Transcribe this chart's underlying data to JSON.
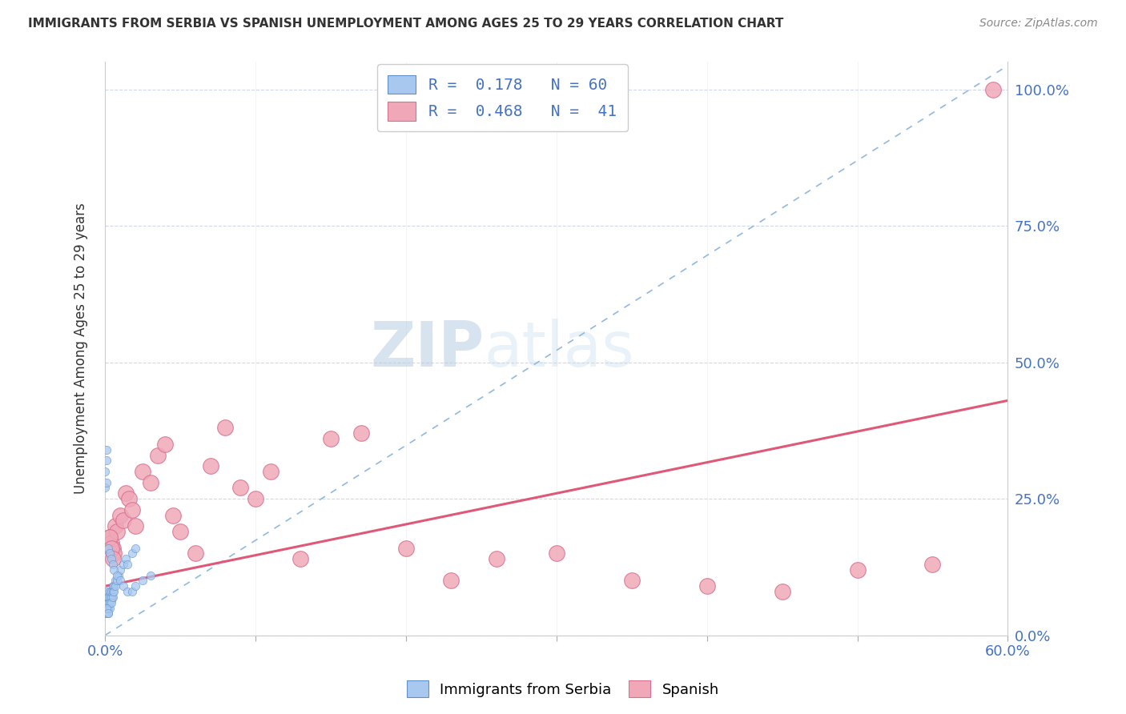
{
  "title": "IMMIGRANTS FROM SERBIA VS SPANISH UNEMPLOYMENT AMONG AGES 25 TO 29 YEARS CORRELATION CHART",
  "source": "Source: ZipAtlas.com",
  "ylabel": "Unemployment Among Ages 25 to 29 years",
  "color_serbia": "#a8c8f0",
  "color_serbian_edge": "#6090c8",
  "color_spanish": "#f0a8b8",
  "color_spanish_edge": "#d87090",
  "color_regression_serbia": "#90b8e0",
  "color_regression_spanish": "#e05878",
  "serbia_x": [
    0.001,
    0.001,
    0.001,
    0.001,
    0.001,
    0.001,
    0.001,
    0.001,
    0.001,
    0.002,
    0.002,
    0.002,
    0.002,
    0.002,
    0.002,
    0.002,
    0.002,
    0.003,
    0.003,
    0.003,
    0.003,
    0.003,
    0.004,
    0.004,
    0.004,
    0.005,
    0.005,
    0.005,
    0.006,
    0.006,
    0.007,
    0.007,
    0.008,
    0.009,
    0.01,
    0.012,
    0.014,
    0.015,
    0.018,
    0.02,
    0.0,
    0.0,
    0.001,
    0.001,
    0.001,
    0.002,
    0.003,
    0.004,
    0.005,
    0.006,
    0.008,
    0.01,
    0.012,
    0.015,
    0.018,
    0.02,
    0.025,
    0.03,
    0.001,
    0.002
  ],
  "serbia_y": [
    0.04,
    0.05,
    0.06,
    0.07,
    0.07,
    0.08,
    0.06,
    0.05,
    0.04,
    0.05,
    0.06,
    0.07,
    0.05,
    0.04,
    0.06,
    0.07,
    0.05,
    0.06,
    0.07,
    0.05,
    0.08,
    0.06,
    0.07,
    0.08,
    0.06,
    0.08,
    0.09,
    0.07,
    0.09,
    0.08,
    0.1,
    0.09,
    0.1,
    0.11,
    0.12,
    0.13,
    0.14,
    0.13,
    0.15,
    0.16,
    0.3,
    0.27,
    0.32,
    0.28,
    0.34,
    0.16,
    0.15,
    0.14,
    0.13,
    0.12,
    0.11,
    0.1,
    0.09,
    0.08,
    0.08,
    0.09,
    0.1,
    0.11,
    0.05,
    0.04
  ],
  "spanish_x": [
    0.002,
    0.003,
    0.004,
    0.005,
    0.006,
    0.007,
    0.008,
    0.01,
    0.012,
    0.014,
    0.016,
    0.018,
    0.02,
    0.025,
    0.03,
    0.035,
    0.04,
    0.045,
    0.05,
    0.06,
    0.07,
    0.08,
    0.09,
    0.1,
    0.11,
    0.13,
    0.15,
    0.17,
    0.2,
    0.23,
    0.26,
    0.3,
    0.35,
    0.4,
    0.45,
    0.5,
    0.55,
    0.003,
    0.004,
    0.005,
    0.59
  ],
  "spanish_y": [
    0.07,
    0.18,
    0.17,
    0.16,
    0.15,
    0.2,
    0.19,
    0.22,
    0.21,
    0.26,
    0.25,
    0.23,
    0.2,
    0.3,
    0.28,
    0.33,
    0.35,
    0.22,
    0.19,
    0.15,
    0.31,
    0.38,
    0.27,
    0.25,
    0.3,
    0.14,
    0.36,
    0.37,
    0.16,
    0.1,
    0.14,
    0.15,
    0.1,
    0.09,
    0.08,
    0.12,
    0.13,
    0.18,
    0.16,
    0.14,
    1.0
  ],
  "regression_serbia_x0": 0.0,
  "regression_serbia_y0": 0.0,
  "regression_serbia_x1": 0.575,
  "regression_serbia_y1": 1.0,
  "regression_spanish_x0": 0.0,
  "regression_spanish_y0": 0.09,
  "regression_spanish_x1": 0.6,
  "regression_spanish_y1": 0.43,
  "xlim": [
    0.0,
    0.6
  ],
  "ylim": [
    0.0,
    1.05
  ],
  "xtick_positions": [
    0.0,
    0.1,
    0.2,
    0.3,
    0.4,
    0.5,
    0.6
  ],
  "ytick_positions": [
    0.0,
    0.25,
    0.5,
    0.75,
    1.0
  ],
  "ytick_labels_right": [
    "0.0%",
    "25.0%",
    "50.0%",
    "75.0%",
    "100.0%"
  ],
  "watermark_zip": "ZIP",
  "watermark_atlas": "atlas",
  "legend_line1": "R =  0.178   N = 60",
  "legend_line2": "R =  0.468   N =  41"
}
